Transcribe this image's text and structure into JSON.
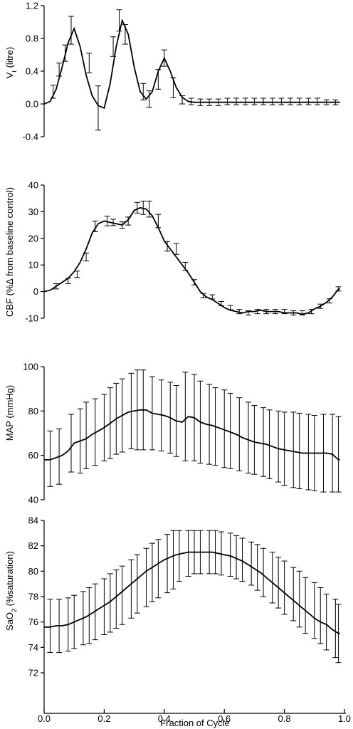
{
  "chart_data": [
    {
      "type": "line",
      "ylabel_main": "V",
      "ylabel_sub": "t",
      "ylabel_rest": " (litre)",
      "ylim": [
        -0.4,
        1.2
      ],
      "yticks": [
        -0.4,
        0.0,
        0.4,
        0.8,
        1.2
      ],
      "ytick_labels": [
        "-0.4",
        "0.0",
        "0.4",
        "0.8",
        "1.2"
      ],
      "x": [
        0.0,
        0.02,
        0.04,
        0.06,
        0.08,
        0.1,
        0.12,
        0.14,
        0.16,
        0.18,
        0.2,
        0.22,
        0.24,
        0.26,
        0.28,
        0.3,
        0.32,
        0.34,
        0.36,
        0.38,
        0.4,
        0.42,
        0.44,
        0.46,
        0.48,
        0.5,
        0.52,
        0.54,
        0.56,
        0.58,
        0.6,
        0.62,
        0.64,
        0.66,
        0.68,
        0.7,
        0.72,
        0.74,
        0.76,
        0.78,
        0.8,
        0.82,
        0.84,
        0.86,
        0.88,
        0.9,
        0.92,
        0.94,
        0.96,
        0.98
      ],
      "y": [
        0.0,
        0.03,
        0.18,
        0.45,
        0.75,
        0.92,
        0.7,
        0.35,
        0.1,
        -0.02,
        -0.05,
        0.25,
        0.7,
        1.02,
        0.85,
        0.45,
        0.15,
        0.06,
        0.15,
        0.4,
        0.56,
        0.4,
        0.2,
        0.08,
        0.03,
        0.02,
        0.02,
        0.02,
        0.02,
        0.02,
        0.02,
        0.02,
        0.02,
        0.02,
        0.02,
        0.02,
        0.02,
        0.02,
        0.02,
        0.02,
        0.02,
        0.02,
        0.02,
        0.02,
        0.02,
        0.02,
        0.02,
        0.02,
        0.02,
        0.02
      ],
      "err_x": [
        0.03,
        0.05,
        0.07,
        0.09,
        0.15,
        0.18,
        0.23,
        0.25,
        0.27,
        0.33,
        0.35,
        0.38,
        0.4,
        0.43,
        0.46,
        0.49,
        0.52,
        0.55,
        0.58,
        0.61,
        0.64,
        0.67,
        0.7,
        0.73,
        0.76,
        0.79,
        0.82,
        0.85,
        0.88,
        0.91,
        0.94,
        0.97
      ],
      "err_y": [
        0.15,
        0.42,
        0.62,
        0.9,
        0.5,
        -0.05,
        0.7,
        1.02,
        0.85,
        0.15,
        0.06,
        0.3,
        0.56,
        0.2,
        0.05,
        0.03,
        0.02,
        0.02,
        0.02,
        0.03,
        0.03,
        0.03,
        0.03,
        0.03,
        0.03,
        0.03,
        0.03,
        0.03,
        0.03,
        0.03,
        0.02,
        0.02
      ],
      "err_e": [
        0.08,
        0.08,
        0.1,
        0.17,
        0.12,
        0.27,
        0.12,
        0.13,
        0.12,
        0.1,
        0.1,
        0.12,
        0.1,
        0.12,
        0.05,
        0.04,
        0.04,
        0.04,
        0.04,
        0.04,
        0.04,
        0.04,
        0.04,
        0.04,
        0.04,
        0.04,
        0.04,
        0.04,
        0.04,
        0.04,
        0.03,
        0.03
      ]
    },
    {
      "type": "line",
      "ylabel": "CBF (%∆ from baseline control)",
      "ylim": [
        -10,
        40
      ],
      "yticks": [
        -10,
        0,
        10,
        20,
        30,
        40
      ],
      "ytick_labels": [
        "-10",
        "0",
        "10",
        "20",
        "30",
        "40"
      ],
      "x": [
        0.0,
        0.02,
        0.04,
        0.06,
        0.08,
        0.1,
        0.12,
        0.14,
        0.16,
        0.18,
        0.2,
        0.22,
        0.24,
        0.26,
        0.28,
        0.3,
        0.32,
        0.34,
        0.36,
        0.38,
        0.4,
        0.42,
        0.44,
        0.46,
        0.48,
        0.5,
        0.52,
        0.54,
        0.56,
        0.58,
        0.6,
        0.62,
        0.64,
        0.66,
        0.68,
        0.7,
        0.72,
        0.74,
        0.76,
        0.78,
        0.8,
        0.82,
        0.84,
        0.86,
        0.88,
        0.9,
        0.92,
        0.94,
        0.96,
        0.98
      ],
      "y": [
        0.0,
        0.5,
        2.0,
        3.5,
        5.0,
        7.5,
        11.0,
        16.0,
        22.0,
        25.5,
        26.5,
        26.0,
        25.5,
        25.0,
        27.0,
        30.5,
        31.5,
        31.0,
        28.5,
        24.0,
        19.0,
        16.0,
        13.0,
        10.0,
        7.0,
        3.5,
        0.0,
        -2.0,
        -3.0,
        -4.5,
        -6.0,
        -7.0,
        -7.5,
        -8.0,
        -7.5,
        -7.5,
        -7.0,
        -7.5,
        -7.5,
        -7.5,
        -8.0,
        -8.0,
        -8.0,
        -8.5,
        -8.0,
        -6.5,
        -5.5,
        -4.0,
        -2.0,
        1.0
      ],
      "err_x": [
        0.04,
        0.08,
        0.11,
        0.14,
        0.17,
        0.21,
        0.23,
        0.26,
        0.28,
        0.31,
        0.33,
        0.35,
        0.38,
        0.41,
        0.44,
        0.47,
        0.5,
        0.53,
        0.56,
        0.59,
        0.62,
        0.65,
        0.68,
        0.71,
        0.74,
        0.77,
        0.8,
        0.83,
        0.86,
        0.89,
        0.92,
        0.95,
        0.98
      ],
      "err_y": [
        2.0,
        4.0,
        6.5,
        13.0,
        24.5,
        26.5,
        26.0,
        25.0,
        26.5,
        31.5,
        31.5,
        31.0,
        26.5,
        17.0,
        16.0,
        9.5,
        3.5,
        -1.5,
        -2.0,
        -4.5,
        -6.0,
        -7.5,
        -8.0,
        -7.5,
        -7.5,
        -7.5,
        -7.5,
        -8.0,
        -8.0,
        -7.5,
        -5.5,
        -3.5,
        1.0
      ],
      "err_e": [
        1.0,
        1.0,
        1.2,
        1.5,
        2.0,
        1.8,
        1.2,
        1.2,
        1.5,
        2.0,
        2.5,
        3.0,
        2.5,
        1.8,
        2.0,
        1.5,
        1.0,
        0.8,
        0.8,
        0.8,
        0.8,
        0.8,
        0.8,
        0.8,
        0.8,
        0.8,
        0.8,
        0.8,
        0.8,
        0.8,
        0.8,
        0.8,
        0.8
      ]
    },
    {
      "type": "line",
      "ylabel": "MAP (mmHg)",
      "ylim": [
        40,
        100
      ],
      "yticks": [
        40,
        60,
        80,
        100
      ],
      "ytick_labels": [
        "40",
        "60",
        "80",
        "100"
      ],
      "x": [
        0.0,
        0.02,
        0.04,
        0.06,
        0.08,
        0.1,
        0.12,
        0.14,
        0.16,
        0.18,
        0.2,
        0.22,
        0.24,
        0.26,
        0.28,
        0.3,
        0.32,
        0.34,
        0.36,
        0.38,
        0.4,
        0.42,
        0.44,
        0.46,
        0.48,
        0.5,
        0.52,
        0.54,
        0.56,
        0.58,
        0.6,
        0.62,
        0.64,
        0.66,
        0.68,
        0.7,
        0.72,
        0.74,
        0.76,
        0.78,
        0.8,
        0.82,
        0.84,
        0.86,
        0.88,
        0.9,
        0.92,
        0.94,
        0.96,
        0.98
      ],
      "y": [
        58.0,
        58.0,
        59.0,
        60.0,
        62.0,
        65.5,
        66.5,
        67.5,
        69.5,
        71.0,
        72.5,
        74.5,
        76.5,
        78.0,
        79.5,
        80.0,
        80.5,
        80.5,
        79.0,
        78.5,
        78.0,
        77.0,
        75.5,
        75.0,
        77.5,
        77.0,
        75.0,
        74.0,
        73.5,
        72.5,
        71.5,
        70.5,
        69.5,
        68.0,
        67.0,
        66.0,
        65.5,
        65.0,
        64.0,
        63.0,
        62.5,
        62.0,
        61.5,
        61.0,
        61.0,
        61.0,
        61.0,
        61.0,
        60.5,
        58.0
      ],
      "err_x": [
        0.02,
        0.05,
        0.09,
        0.12,
        0.14,
        0.17,
        0.2,
        0.22,
        0.24,
        0.26,
        0.29,
        0.31,
        0.33,
        0.36,
        0.39,
        0.42,
        0.44,
        0.47,
        0.5,
        0.52,
        0.55,
        0.57,
        0.6,
        0.62,
        0.65,
        0.68,
        0.7,
        0.73,
        0.75,
        0.78,
        0.8,
        0.83,
        0.85,
        0.88,
        0.9,
        0.93,
        0.96,
        0.98
      ],
      "err_y": [
        58.5,
        59.5,
        65.5,
        66.5,
        69.0,
        70.5,
        72.5,
        74.5,
        76.5,
        78.0,
        80.0,
        80.5,
        80.5,
        79.0,
        78.0,
        77.0,
        75.5,
        77.5,
        77.0,
        75.0,
        74.0,
        73.0,
        72.0,
        71.0,
        69.5,
        68.0,
        67.0,
        66.0,
        65.0,
        64.0,
        63.0,
        62.5,
        62.0,
        61.5,
        61.0,
        61.0,
        61.0,
        60.5
      ],
      "err_e": [
        12.5,
        12.5,
        13.0,
        14.5,
        15.0,
        15.0,
        15.0,
        16.0,
        16.0,
        16.5,
        17.0,
        18.0,
        18.0,
        16.5,
        16.0,
        16.0,
        16.0,
        20.0,
        19.5,
        18.5,
        18.0,
        17.5,
        17.5,
        17.0,
        16.5,
        16.0,
        15.5,
        15.5,
        15.5,
        16.0,
        16.5,
        17.0,
        17.0,
        17.0,
        17.0,
        17.5,
        17.5,
        17.0
      ]
    },
    {
      "type": "line",
      "ylabel_main": "SaO",
      "ylabel_sub": "2",
      "ylabel_rest": " (%saturation)",
      "ylim": [
        72,
        84
      ],
      "yticks": [
        72,
        74,
        76,
        78,
        80,
        82,
        84
      ],
      "ytick_labels": [
        "72",
        "74",
        "76",
        "78",
        "80",
        "82",
        "84"
      ],
      "x": [
        0.0,
        0.02,
        0.04,
        0.06,
        0.08,
        0.1,
        0.12,
        0.14,
        0.16,
        0.18,
        0.2,
        0.22,
        0.24,
        0.26,
        0.28,
        0.3,
        0.32,
        0.34,
        0.36,
        0.38,
        0.4,
        0.42,
        0.44,
        0.46,
        0.48,
        0.5,
        0.52,
        0.54,
        0.56,
        0.58,
        0.6,
        0.62,
        0.64,
        0.66,
        0.68,
        0.7,
        0.72,
        0.74,
        0.76,
        0.78,
        0.8,
        0.82,
        0.84,
        0.86,
        0.88,
        0.9,
        0.92,
        0.94,
        0.96,
        0.98
      ],
      "y": [
        75.6,
        75.6,
        75.7,
        75.7,
        75.8,
        76.0,
        76.2,
        76.4,
        76.7,
        77.0,
        77.3,
        77.6,
        78.0,
        78.4,
        78.8,
        79.2,
        79.6,
        80.0,
        80.3,
        80.6,
        80.9,
        81.1,
        81.3,
        81.4,
        81.5,
        81.5,
        81.5,
        81.5,
        81.5,
        81.4,
        81.3,
        81.2,
        81.0,
        80.8,
        80.5,
        80.2,
        79.9,
        79.5,
        79.1,
        78.7,
        78.3,
        77.9,
        77.5,
        77.1,
        76.7,
        76.3,
        76.0,
        75.8,
        75.4,
        75.1
      ],
      "err_x": [
        0.02,
        0.05,
        0.08,
        0.1,
        0.13,
        0.15,
        0.17,
        0.2,
        0.22,
        0.24,
        0.26,
        0.29,
        0.31,
        0.34,
        0.36,
        0.38,
        0.41,
        0.43,
        0.45,
        0.48,
        0.5,
        0.52,
        0.55,
        0.57,
        0.59,
        0.62,
        0.64,
        0.66,
        0.69,
        0.71,
        0.73,
        0.76,
        0.78,
        0.8,
        0.83,
        0.85,
        0.87,
        0.9,
        0.92,
        0.94,
        0.97,
        0.98
      ],
      "err_y": [
        75.7,
        75.7,
        75.8,
        76.0,
        76.3,
        76.5,
        76.8,
        77.2,
        77.5,
        77.8,
        78.1,
        78.6,
        79.0,
        79.5,
        79.9,
        80.2,
        80.6,
        80.9,
        81.2,
        81.4,
        81.5,
        81.5,
        81.5,
        81.5,
        81.4,
        81.3,
        81.1,
        80.9,
        80.6,
        80.3,
        79.9,
        79.5,
        79.1,
        78.7,
        78.2,
        77.8,
        77.3,
        76.9,
        76.5,
        76.0,
        75.5,
        75.1
      ],
      "err_e": [
        2.1,
        2.1,
        2.1,
        2.1,
        2.1,
        2.2,
        2.2,
        2.2,
        2.3,
        2.3,
        2.3,
        2.3,
        2.3,
        2.3,
        2.3,
        2.3,
        2.3,
        2.3,
        2.0,
        1.8,
        1.7,
        1.7,
        1.7,
        1.7,
        1.7,
        1.7,
        1.7,
        1.7,
        1.7,
        1.8,
        1.9,
        2.0,
        2.0,
        2.1,
        2.1,
        2.2,
        2.2,
        2.2,
        2.2,
        2.2,
        2.3,
        2.3
      ]
    }
  ],
  "x_axis": {
    "label": "Fraction of Cycle",
    "lim": [
      0.0,
      1.0
    ],
    "ticks": [
      0.0,
      0.2,
      0.4,
      0.6,
      0.8,
      1.0
    ],
    "tick_labels": [
      "0.0",
      "0.2",
      "0.4",
      "0.6",
      "0.8",
      "1.0"
    ]
  }
}
